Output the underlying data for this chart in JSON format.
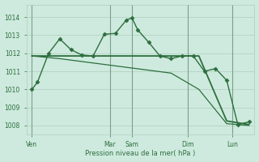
{
  "bg_color": "#ceeade",
  "grid_color": "#b0ccbe",
  "line_color": "#2d6e3e",
  "marker_color": "#2d6e3e",
  "ylabel_ticks": [
    1008,
    1009,
    1010,
    1011,
    1012,
    1013,
    1014
  ],
  "ylim": [
    1007.5,
    1014.7
  ],
  "xlabel": "Pression niveau de la mer( hPa )",
  "day_labels": [
    "Ven",
    "Mar",
    "Sam",
    "Dim",
    "Lun"
  ],
  "day_tick_x": [
    0,
    14,
    18,
    28,
    36
  ],
  "xlim": [
    -1,
    40
  ],
  "vline_x": [
    0,
    14,
    18,
    28,
    36
  ],
  "series1": {
    "x": [
      0,
      1,
      3,
      5,
      7,
      9,
      11,
      13,
      15,
      17,
      18,
      19,
      21,
      23,
      25,
      27,
      29,
      31,
      33,
      35,
      37,
      39
    ],
    "y": [
      1010.0,
      1010.4,
      1012.0,
      1012.8,
      1012.2,
      1011.9,
      1011.85,
      1013.05,
      1013.1,
      1013.85,
      1013.95,
      1013.3,
      1012.6,
      1011.85,
      1011.7,
      1011.85,
      1011.85,
      1011.0,
      1011.15,
      1010.5,
      1008.05,
      1008.2
    ],
    "marker": "D",
    "markersize": 2.5,
    "linewidth": 1.0
  },
  "series2": {
    "x": [
      0,
      5,
      10,
      15,
      20,
      25,
      27,
      30,
      35,
      39
    ],
    "y": [
      1011.85,
      1011.85,
      1011.85,
      1011.85,
      1011.85,
      1011.85,
      1011.85,
      1011.85,
      1008.25,
      1008.05
    ],
    "linewidth": 1.3
  },
  "series3": {
    "x": [
      0,
      5,
      10,
      15,
      20,
      25,
      30,
      35,
      39
    ],
    "y": [
      1011.85,
      1011.7,
      1011.5,
      1011.3,
      1011.1,
      1010.9,
      1010.0,
      1008.1,
      1008.0
    ],
    "linewidth": 0.9
  }
}
